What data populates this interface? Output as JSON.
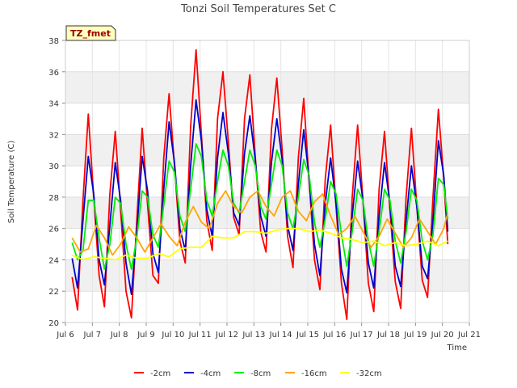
{
  "chart_data": {
    "type": "line",
    "title": "Tonzi Soil Temperatures Set C",
    "xlabel": "Time",
    "ylabel": "Soil Temperature (C)",
    "badge": "TZ_fmet",
    "xlim": [
      6,
      21
    ],
    "ylim": [
      20,
      38
    ],
    "x_ticks": [
      {
        "value": 6,
        "label": "Jul 6"
      },
      {
        "value": 7,
        "label": "Jul 7"
      },
      {
        "value": 8,
        "label": "Jul 8"
      },
      {
        "value": 9,
        "label": "Jul 9"
      },
      {
        "value": 10,
        "label": "Jul 10"
      },
      {
        "value": 11,
        "label": "Jul 11"
      },
      {
        "value": 12,
        "label": "Jul 12"
      },
      {
        "value": 13,
        "label": "Jul 13"
      },
      {
        "value": 14,
        "label": "Jul 14"
      },
      {
        "value": 15,
        "label": "Jul 15"
      },
      {
        "value": 16,
        "label": "Jul 16"
      },
      {
        "value": 17,
        "label": "Jul 17"
      },
      {
        "value": 18,
        "label": "Jul 18"
      },
      {
        "value": 19,
        "label": "Jul 19"
      },
      {
        "value": 20,
        "label": "Jul 20"
      },
      {
        "value": 21,
        "label": "Jul 21"
      }
    ],
    "y_ticks": [
      20,
      22,
      24,
      26,
      28,
      30,
      32,
      34,
      36,
      38
    ],
    "grid": true,
    "legend_position": "bottom",
    "series": [
      {
        "name": "-2cm",
        "color": "#ff0000",
        "x": [
          6.25,
          6.45,
          6.65,
          6.85,
          7.05,
          7.25,
          7.45,
          7.65,
          7.85,
          8.05,
          8.25,
          8.45,
          8.65,
          8.85,
          9.05,
          9.25,
          9.45,
          9.65,
          9.85,
          10.05,
          10.25,
          10.45,
          10.65,
          10.85,
          11.05,
          11.25,
          11.45,
          11.65,
          11.85,
          12.05,
          12.25,
          12.45,
          12.65,
          12.85,
          13.05,
          13.25,
          13.45,
          13.65,
          13.85,
          14.05,
          14.25,
          14.45,
          14.65,
          14.85,
          15.05,
          15.25,
          15.45,
          15.65,
          15.85,
          16.05,
          16.25,
          16.45,
          16.65,
          16.85,
          17.05,
          17.25,
          17.45,
          17.65,
          17.85,
          18.05,
          18.25,
          18.45,
          18.65,
          18.85,
          19.05,
          19.25,
          19.45,
          19.65,
          19.85,
          20.05,
          20.2
        ],
        "y": [
          22.9,
          20.8,
          27.8,
          33.3,
          28.0,
          23.0,
          21.0,
          28.2,
          32.2,
          27.2,
          22.0,
          20.3,
          26.5,
          32.4,
          27.5,
          23.0,
          22.5,
          30.5,
          34.6,
          30.0,
          25.2,
          23.8,
          32.5,
          37.4,
          32.0,
          26.5,
          24.6,
          33.0,
          36.0,
          31.5,
          26.7,
          25.6,
          33.0,
          35.8,
          30.6,
          25.8,
          24.5,
          32.3,
          35.6,
          31.0,
          25.5,
          23.5,
          30.5,
          34.3,
          29.0,
          24.0,
          22.1,
          29.2,
          32.6,
          27.4,
          22.5,
          20.2,
          28.0,
          32.6,
          27.8,
          22.5,
          20.7,
          28.5,
          32.2,
          27.2,
          22.6,
          20.9,
          28.0,
          32.4,
          27.4,
          22.7,
          21.6,
          28.0,
          33.6,
          29.2,
          25.0
        ]
      },
      {
        "name": "-4cm",
        "color": "#0000cc",
        "x": [
          6.25,
          6.45,
          6.65,
          6.85,
          7.05,
          7.25,
          7.45,
          7.65,
          7.85,
          8.05,
          8.25,
          8.45,
          8.65,
          8.85,
          9.05,
          9.25,
          9.45,
          9.65,
          9.85,
          10.05,
          10.25,
          10.45,
          10.65,
          10.85,
          11.05,
          11.25,
          11.45,
          11.65,
          11.85,
          12.05,
          12.25,
          12.45,
          12.65,
          12.85,
          13.05,
          13.25,
          13.45,
          13.65,
          13.85,
          14.05,
          14.25,
          14.45,
          14.65,
          14.85,
          15.05,
          15.25,
          15.45,
          15.65,
          15.85,
          16.05,
          16.25,
          16.45,
          16.65,
          16.85,
          17.05,
          17.25,
          17.45,
          17.65,
          17.85,
          18.05,
          18.25,
          18.45,
          18.65,
          18.85,
          19.05,
          19.25,
          19.45,
          19.65,
          19.85,
          20.05,
          20.2
        ],
        "y": [
          24.1,
          22.2,
          26.5,
          30.6,
          28.2,
          24.0,
          22.4,
          26.2,
          30.2,
          27.8,
          23.8,
          21.8,
          25.8,
          30.6,
          28.4,
          24.4,
          23.2,
          28.5,
          32.8,
          30.2,
          26.0,
          24.6,
          30.0,
          34.2,
          31.6,
          27.2,
          25.5,
          30.5,
          33.4,
          30.8,
          27.0,
          26.2,
          30.8,
          33.2,
          30.4,
          26.8,
          25.5,
          30.2,
          33.0,
          30.4,
          26.2,
          24.6,
          28.8,
          32.3,
          29.2,
          25.0,
          23.0,
          27.6,
          30.5,
          27.6,
          23.4,
          21.9,
          26.8,
          30.3,
          27.8,
          23.8,
          22.2,
          26.8,
          30.2,
          27.6,
          23.6,
          22.3,
          26.5,
          30.0,
          27.4,
          23.6,
          22.8,
          26.5,
          31.6,
          29.4,
          25.8
        ]
      },
      {
        "name": "-8cm",
        "color": "#00ee00",
        "x": [
          6.25,
          6.45,
          6.65,
          6.85,
          7.05,
          7.25,
          7.45,
          7.65,
          7.85,
          8.05,
          8.25,
          8.45,
          8.65,
          8.85,
          9.05,
          9.25,
          9.45,
          9.65,
          9.85,
          10.05,
          10.25,
          10.45,
          10.65,
          10.85,
          11.05,
          11.25,
          11.45,
          11.65,
          11.85,
          12.05,
          12.25,
          12.45,
          12.65,
          12.85,
          13.05,
          13.25,
          13.45,
          13.65,
          13.85,
          14.05,
          14.25,
          14.45,
          14.65,
          14.85,
          15.05,
          15.25,
          15.45,
          15.65,
          15.85,
          16.05,
          16.25,
          16.45,
          16.65,
          16.85,
          17.05,
          17.25,
          17.45,
          17.65,
          17.85,
          18.05,
          18.25,
          18.45,
          18.65,
          18.85,
          19.05,
          19.25,
          19.45,
          19.65,
          19.85,
          20.05,
          20.2
        ],
        "y": [
          25.1,
          24.0,
          24.6,
          27.8,
          27.8,
          25.4,
          23.4,
          25.0,
          28.0,
          27.6,
          25.0,
          23.4,
          25.4,
          28.4,
          28.0,
          25.6,
          24.8,
          27.5,
          30.3,
          29.6,
          26.8,
          25.8,
          28.5,
          31.4,
          30.6,
          27.8,
          26.8,
          29.0,
          31.0,
          30.0,
          27.6,
          27.0,
          29.0,
          31.0,
          30.0,
          27.4,
          26.6,
          28.8,
          31.0,
          30.0,
          27.0,
          26.0,
          28.0,
          30.4,
          29.4,
          26.4,
          24.8,
          26.6,
          29.0,
          28.2,
          25.6,
          23.6,
          25.8,
          28.5,
          27.8,
          25.2,
          23.6,
          25.8,
          28.5,
          27.8,
          25.2,
          23.8,
          25.8,
          28.5,
          27.8,
          25.2,
          24.0,
          25.6,
          29.2,
          28.8,
          26.6
        ]
      },
      {
        "name": "-16cm",
        "color": "#ffa500",
        "x": [
          6.25,
          6.55,
          6.85,
          7.15,
          7.45,
          7.75,
          8.05,
          8.35,
          8.65,
          8.95,
          9.25,
          9.55,
          9.85,
          10.15,
          10.45,
          10.75,
          11.05,
          11.35,
          11.65,
          11.95,
          12.25,
          12.55,
          12.85,
          13.15,
          13.45,
          13.75,
          14.05,
          14.35,
          14.65,
          14.95,
          15.25,
          15.55,
          15.85,
          16.15,
          16.45,
          16.75,
          17.05,
          17.35,
          17.65,
          17.95,
          18.25,
          18.55,
          18.85,
          19.15,
          19.45,
          19.75,
          20.05,
          20.2
        ],
        "y": [
          25.4,
          24.5,
          24.7,
          26.2,
          25.4,
          24.3,
          25.0,
          26.1,
          25.4,
          24.5,
          25.4,
          26.3,
          25.5,
          24.9,
          26.4,
          27.4,
          26.4,
          26.0,
          27.6,
          28.4,
          27.4,
          27.0,
          28.0,
          28.4,
          27.4,
          26.8,
          28.0,
          28.4,
          27.1,
          26.5,
          27.7,
          28.2,
          26.8,
          25.6,
          26.0,
          26.8,
          25.8,
          24.8,
          25.5,
          26.6,
          25.7,
          24.8,
          25.4,
          26.6,
          25.8,
          25.0,
          26.0,
          27.0
        ]
      },
      {
        "name": "-32cm",
        "color": "#ffff00",
        "x": [
          6.25,
          6.65,
          7.05,
          7.45,
          7.85,
          8.25,
          8.65,
          9.05,
          9.45,
          9.85,
          10.25,
          10.65,
          11.05,
          11.45,
          11.85,
          12.25,
          12.65,
          13.05,
          13.45,
          13.85,
          14.25,
          14.65,
          15.05,
          15.45,
          15.85,
          16.25,
          16.65,
          17.05,
          17.45,
          17.85,
          18.25,
          18.65,
          19.05,
          19.45,
          19.85,
          20.2
        ],
        "y": [
          24.3,
          24.0,
          24.2,
          24.1,
          24.0,
          24.3,
          24.1,
          24.1,
          24.4,
          24.2,
          24.7,
          24.8,
          24.8,
          25.5,
          25.4,
          25.4,
          25.8,
          25.8,
          25.7,
          25.9,
          26.0,
          26.0,
          25.8,
          25.9,
          25.7,
          25.4,
          25.3,
          25.1,
          25.2,
          24.9,
          25.1,
          24.9,
          25.0,
          25.2,
          24.9,
          25.2
        ]
      }
    ]
  }
}
